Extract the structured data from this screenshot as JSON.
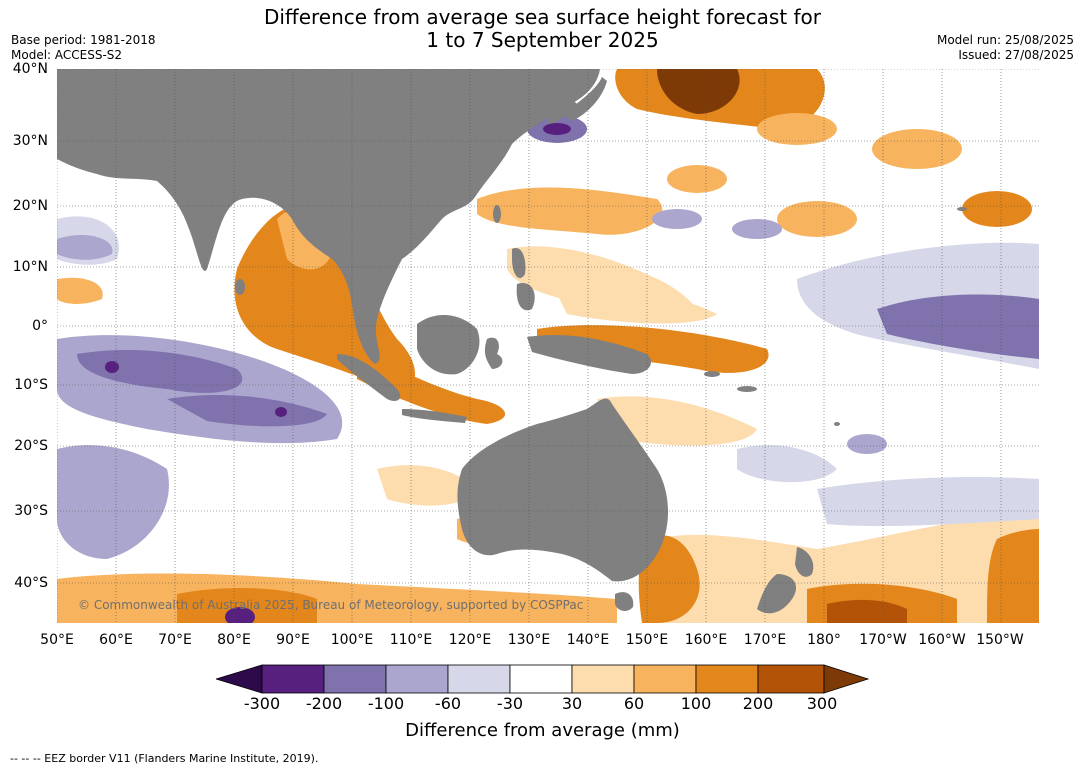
{
  "header": {
    "title_line1": "Difference from average sea surface height forecast for",
    "title_line2": "1 to 7 September 2025",
    "base_period": "Base period: 1981-2018",
    "model": "Model: ACCESS-S2",
    "model_run": "Model run: 25/08/2025",
    "issued": "Issued: 27/08/2025"
  },
  "map": {
    "lat_labels": [
      "40°N",
      "30°N",
      "20°N",
      "10°N",
      "0°",
      "10°S",
      "20°S",
      "30°S",
      "40°S"
    ],
    "lon_labels": [
      "50°E",
      "60°E",
      "70°E",
      "80°E",
      "90°E",
      "100°E",
      "110°E",
      "120°E",
      "130°E",
      "140°E",
      "150°E",
      "160°E",
      "170°E",
      "180°",
      "170°W",
      "160°W",
      "150°W"
    ],
    "land_color": "#808080",
    "copyright": "© Commonwealth of Australia 2025, Bureau of Meteorology, supported by COSPPac"
  },
  "colorbar": {
    "colors": [
      "#2d0a4a",
      "#57207f",
      "#7f72ad",
      "#aba6cd",
      "#d6d8ea",
      "#ffffff",
      "#fddcad",
      "#f8b35e",
      "#e3861b",
      "#b25307",
      "#7e3a06"
    ],
    "tick_labels": [
      "-300",
      "-200",
      "-100",
      "-60",
      "-30",
      "30",
      "60",
      "100",
      "200",
      "300"
    ],
    "label": "Difference from average (mm)"
  },
  "footnote": "--  --  -- EEZ border V11 (Flanders Marine Institute, 2019)."
}
